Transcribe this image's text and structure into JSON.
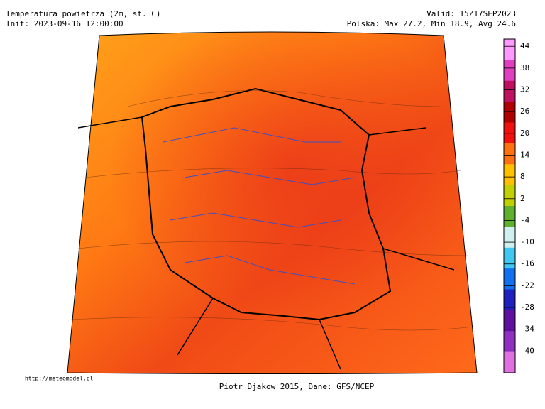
{
  "header": {
    "title": "Temperatura powietrza (2m, st. C)",
    "init": "Init: 2023-09-16_12:00:00",
    "valid": "Valid: 15Z17SEP2023",
    "stats": "Polska: Max 27.2, Min 18.9, Avg 24.6"
  },
  "colorbar": {
    "lim": [
      -46,
      46
    ],
    "ticks": [
      44,
      38,
      32,
      26,
      20,
      14,
      8,
      2,
      -4,
      -10,
      -16,
      -22,
      -28,
      -34,
      -40
    ],
    "colors": [
      "#ff99ff",
      "#e040c0",
      "#c01060",
      "#b00000",
      "#f01010",
      "#ff7010",
      "#ffc000",
      "#c0d000",
      "#60b030",
      "#d0f0f0",
      "#40c8f0",
      "#1070f0",
      "#2020c0",
      "#6010a0",
      "#9030c0",
      "#e070e0"
    ]
  },
  "footer": {
    "url": "http://meteomodel.pl",
    "credit": "Piotr Djakow 2015, Dane: GFS/NCEP"
  }
}
